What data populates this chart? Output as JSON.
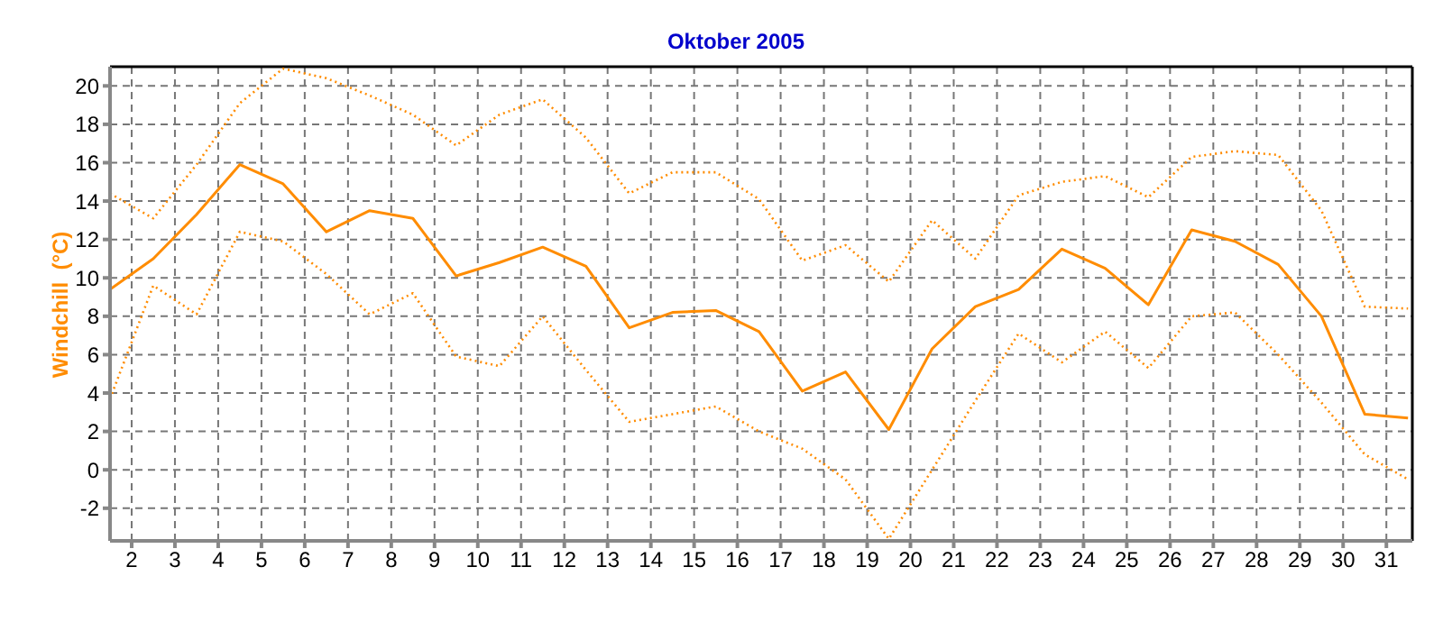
{
  "chart_data": {
    "type": "line",
    "title": "Oktober 2005",
    "ylabel": "Windchill  (°C)",
    "x": [
      1.5,
      2.5,
      3.5,
      4.5,
      5.5,
      6.5,
      7.5,
      8.5,
      9.5,
      10.5,
      11.5,
      12.5,
      13.5,
      14.5,
      15.5,
      16.5,
      17.5,
      18.5,
      19.5,
      20.5,
      21.5,
      22.5,
      23.5,
      24.5,
      25.5,
      26.5,
      27.5,
      28.5,
      29.5,
      30.5,
      31.5
    ],
    "series": [
      {
        "color": "#ff8c00",
        "line_style": "dotted",
        "values": [
          14.4,
          13.1,
          15.9,
          19.1,
          20.9,
          20.4,
          19.5,
          18.5,
          16.9,
          18.5,
          19.3,
          17.3,
          14.4,
          15.5,
          15.5,
          14.1,
          10.9,
          11.7,
          9.8,
          13.0,
          11.0,
          14.3,
          15.0,
          15.3,
          14.2,
          16.3,
          16.6,
          16.4,
          13.5,
          8.5,
          8.4
        ]
      },
      {
        "color": "#ff8c00",
        "line_style": "solid",
        "values": [
          9.4,
          11.0,
          13.3,
          15.9,
          14.9,
          12.4,
          13.5,
          13.1,
          10.1,
          10.8,
          11.6,
          10.6,
          7.4,
          8.2,
          8.3,
          7.2,
          4.1,
          5.1,
          2.1,
          6.3,
          8.5,
          9.4,
          11.5,
          10.5,
          8.6,
          12.5,
          11.9,
          10.7,
          8.0,
          2.9,
          2.7
        ]
      },
      {
        "color": "#ff8c00",
        "line_style": "dotted",
        "values": [
          3.7,
          9.6,
          8.1,
          12.4,
          11.9,
          10.2,
          8.1,
          9.2,
          5.9,
          5.4,
          8.0,
          5.2,
          2.5,
          2.9,
          3.3,
          2.0,
          1.1,
          -0.5,
          -3.6,
          0.0,
          3.6,
          7.1,
          5.6,
          7.2,
          5.3,
          8.0,
          8.2,
          6.0,
          3.5,
          0.8,
          -0.5
        ]
      }
    ],
    "xlim": [
      1.5,
      31.6
    ],
    "xticks": [
      2,
      3,
      4,
      5,
      6,
      7,
      8,
      9,
      10,
      11,
      12,
      13,
      14,
      15,
      16,
      17,
      18,
      19,
      20,
      21,
      22,
      23,
      24,
      25,
      26,
      27,
      28,
      29,
      30,
      31
    ],
    "ylim": [
      -3.7,
      21
    ],
    "yticks": [
      -2,
      0,
      2,
      4,
      6,
      8,
      10,
      12,
      14,
      16,
      18,
      20
    ],
    "grid": true,
    "legend": false,
    "marker": "none"
  }
}
